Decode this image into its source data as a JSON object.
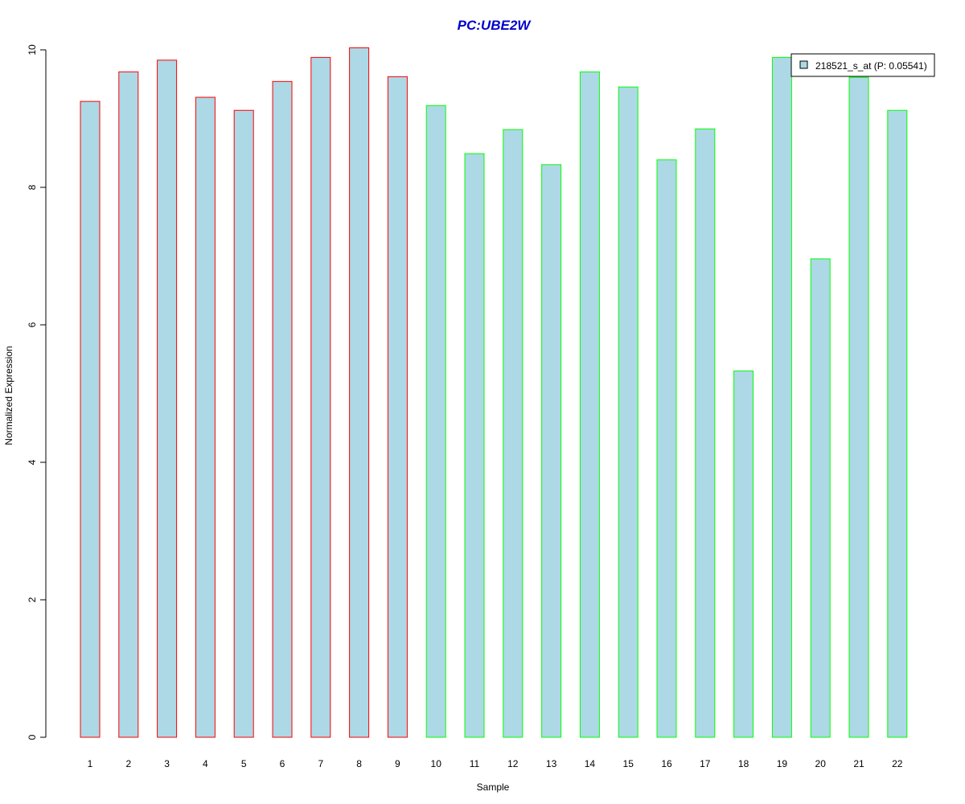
{
  "chart_data": {
    "type": "bar",
    "title": "PC:UBE2W",
    "xlabel": "Sample",
    "ylabel": "Normalized Expression",
    "categories": [
      "1",
      "2",
      "3",
      "4",
      "5",
      "6",
      "7",
      "8",
      "9",
      "10",
      "11",
      "12",
      "13",
      "14",
      "15",
      "16",
      "17",
      "18",
      "19",
      "20",
      "21",
      "22"
    ],
    "series": [
      {
        "name": "218521_s_at (P: 0.05541)",
        "values": [
          9.25,
          9.68,
          9.85,
          9.31,
          9.12,
          9.54,
          9.89,
          10.03,
          9.61,
          9.19,
          8.49,
          8.84,
          8.33,
          9.68,
          9.46,
          8.4,
          8.85,
          5.33,
          9.89,
          6.96,
          9.6,
          9.12
        ]
      }
    ],
    "group_of_bar": [
      "a",
      "a",
      "a",
      "a",
      "a",
      "a",
      "a",
      "a",
      "a",
      "b",
      "b",
      "b",
      "b",
      "b",
      "b",
      "b",
      "b",
      "b",
      "b",
      "b",
      "b",
      "b"
    ],
    "ylim": [
      0,
      10
    ],
    "yticks": [
      0,
      2,
      4,
      6,
      8,
      10
    ],
    "grid": false,
    "legend_position": "top-right",
    "colors": {
      "bar_fill": "#add8e6",
      "group_a_border": "#ff0000",
      "group_b_border": "#00ff00",
      "title": "#0000cd",
      "axis": "#000000"
    }
  }
}
